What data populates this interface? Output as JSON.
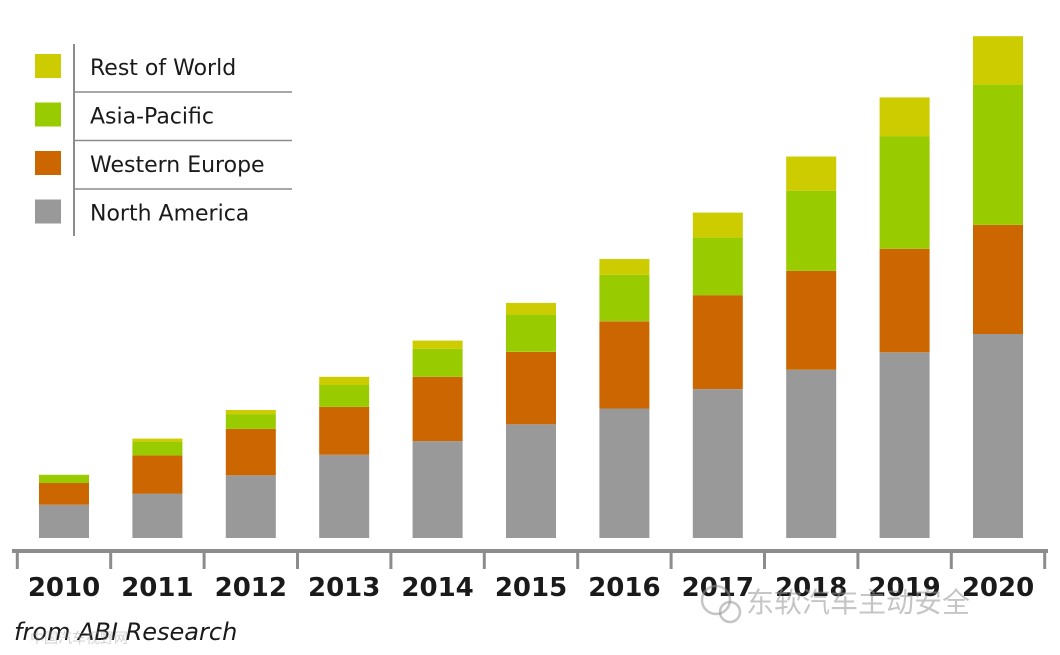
{
  "chart_data": {
    "type": "bar",
    "stacked": true,
    "title": "",
    "xlabel": "",
    "ylabel": "",
    "ylim": [
      0,
      100
    ],
    "legend_position": "top-left",
    "categories": [
      "2010",
      "2011",
      "2012",
      "2013",
      "2014",
      "2015",
      "2016",
      "2017",
      "2018",
      "2019",
      "2020"
    ],
    "series": [
      {
        "name": "North America",
        "color": "#999999",
        "values": [
          6.5,
          8.7,
          12.3,
          16.3,
          19.0,
          22.3,
          25.4,
          29.2,
          33.0,
          36.4,
          40.0
        ]
      },
      {
        "name": "Western Europe",
        "color": "#cc6600",
        "values": [
          4.3,
          7.5,
          9.1,
          9.4,
          12.6,
          14.2,
          17.1,
          18.4,
          19.4,
          20.3,
          21.4
        ]
      },
      {
        "name": "Asia-Pacific",
        "color": "#99cc00",
        "values": [
          1.6,
          2.7,
          2.9,
          4.3,
          5.5,
          7.3,
          9.1,
          11.3,
          15.7,
          22.1,
          27.5
        ]
      },
      {
        "name": "Rest of World",
        "color": "#cccc00",
        "values": [
          0.0,
          0.6,
          0.8,
          1.6,
          1.6,
          2.3,
          3.1,
          4.9,
          6.7,
          7.6,
          9.5
        ]
      }
    ],
    "legend_order": [
      "Rest of World",
      "Asia-Pacific",
      "Western Europe",
      "North America"
    ],
    "source": "from ABI Research"
  },
  "watermark": {
    "text": "东软汽车主动安全",
    "small_text": "中国汽车视野网"
  }
}
